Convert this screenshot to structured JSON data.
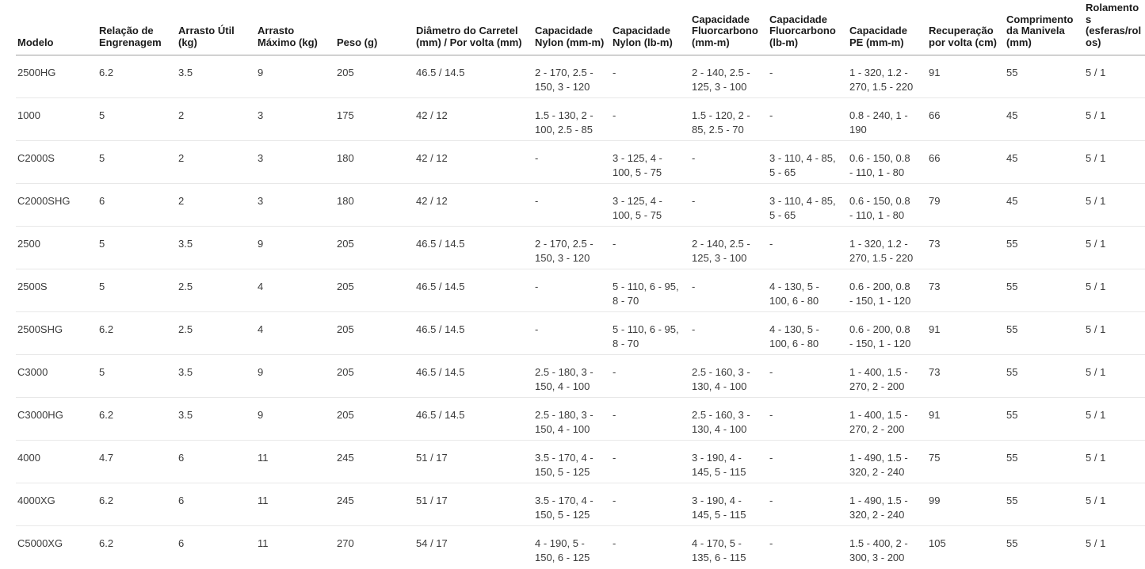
{
  "page": {
    "background_color": "#ffffff",
    "text_color": "#3b3b3b",
    "header_text_color": "#1b1b1b",
    "header_rule_color": "#9f9f9f",
    "row_rule_color": "#e8e8e8"
  },
  "chart_data": {
    "type": "table",
    "title": "",
    "columns": [
      "Modelo",
      "Relação de Engrenagem",
      "Arrasto Útil (kg)",
      "Arrasto Máximo (kg)",
      "Peso (g)",
      "Diâmetro do Carretel (mm) / Por volta (mm)",
      "Capacidade Nylon (mm-m)",
      "Capacidade Nylon (lb-m)",
      "Capacidade Fluorcarbono (mm-m)",
      "Capacidade Fluorcarbono (lb-m)",
      "Capacidade PE (mm-m)",
      "Recuperação por volta (cm)",
      "Comprimento da Manivela (mm)",
      "Rolamentos (esferas/rolos)"
    ],
    "rows": [
      [
        "2500HG",
        "6.2",
        "3.5",
        "9",
        "205",
        "46.5 / 14.5",
        "2 - 170, 2.5 - 150, 3 - 120",
        "-",
        "2 - 140, 2.5 - 125, 3 - 100",
        "-",
        "1 - 320, 1.2 - 270, 1.5 - 220",
        "91",
        "55",
        "5 / 1"
      ],
      [
        "1000",
        "5",
        "2",
        "3",
        "175",
        "42 / 12",
        "1.5 - 130, 2 - 100, 2.5 - 85",
        "-",
        "1.5 - 120, 2 - 85, 2.5 - 70",
        "-",
        "0.8 - 240, 1 - 190",
        "66",
        "45",
        "5 / 1"
      ],
      [
        "C2000S",
        "5",
        "2",
        "3",
        "180",
        "42 / 12",
        "-",
        "3 - 125, 4 - 100, 5 - 75",
        "-",
        "3 - 110, 4 - 85, 5 - 65",
        "0.6 - 150, 0.8 - 110, 1 - 80",
        "66",
        "45",
        "5 / 1"
      ],
      [
        "C2000SHG",
        "6",
        "2",
        "3",
        "180",
        "42 / 12",
        "-",
        "3 - 125, 4 - 100, 5 - 75",
        "-",
        "3 - 110, 4 - 85, 5 - 65",
        "0.6 - 150, 0.8 - 110, 1 - 80",
        "79",
        "45",
        "5 / 1"
      ],
      [
        "2500",
        "5",
        "3.5",
        "9",
        "205",
        "46.5 / 14.5",
        "2 - 170, 2.5 - 150, 3 - 120",
        "-",
        "2 - 140, 2.5 - 125, 3 - 100",
        "-",
        "1 - 320, 1.2 - 270, 1.5 - 220",
        "73",
        "55",
        "5 / 1"
      ],
      [
        "2500S",
        "5",
        "2.5",
        "4",
        "205",
        "46.5 / 14.5",
        "-",
        "5 - 110, 6 - 95, 8 - 70",
        "-",
        "4 - 130, 5 - 100, 6 - 80",
        "0.6 - 200, 0.8 - 150, 1 - 120",
        "73",
        "55",
        "5 / 1"
      ],
      [
        "2500SHG",
        "6.2",
        "2.5",
        "4",
        "205",
        "46.5 / 14.5",
        "-",
        "5 - 110, 6 - 95, 8 - 70",
        "-",
        "4 - 130, 5 - 100, 6 - 80",
        "0.6 - 200, 0.8 - 150, 1 - 120",
        "91",
        "55",
        "5 / 1"
      ],
      [
        "C3000",
        "5",
        "3.5",
        "9",
        "205",
        "46.5 / 14.5",
        "2.5 - 180, 3 - 150, 4 - 100",
        "-",
        "2.5 - 160, 3 - 130, 4 - 100",
        "-",
        "1 - 400, 1.5 - 270, 2 - 200",
        "73",
        "55",
        "5 / 1"
      ],
      [
        "C3000HG",
        "6.2",
        "3.5",
        "9",
        "205",
        "46.5 / 14.5",
        "2.5 - 180, 3 - 150, 4 - 100",
        "-",
        "2.5 - 160, 3 - 130, 4 - 100",
        "-",
        "1 - 400, 1.5 - 270, 2 - 200",
        "91",
        "55",
        "5 / 1"
      ],
      [
        "4000",
        "4.7",
        "6",
        "11",
        "245",
        "51 / 17",
        "3.5 - 170, 4 - 150, 5 - 125",
        "-",
        "3 - 190, 4 - 145, 5 - 115",
        "-",
        "1 - 490, 1.5 - 320, 2 - 240",
        "75",
        "55",
        "5 / 1"
      ],
      [
        "4000XG",
        "6.2",
        "6",
        "11",
        "245",
        "51 / 17",
        "3.5 - 170, 4 - 150, 5 - 125",
        "-",
        "3 - 190, 4 - 145, 5 - 115",
        "-",
        "1 - 490, 1.5 - 320, 2 - 240",
        "99",
        "55",
        "5 / 1"
      ],
      [
        "C5000XG",
        "6.2",
        "6",
        "11",
        "270",
        "54 / 17",
        "4 - 190, 5 - 150, 6 - 125",
        "-",
        "4 - 170, 5 - 135, 6 - 115",
        "-",
        "1.5 - 400, 2 - 300, 3 - 200",
        "105",
        "55",
        "5 / 1"
      ]
    ]
  }
}
